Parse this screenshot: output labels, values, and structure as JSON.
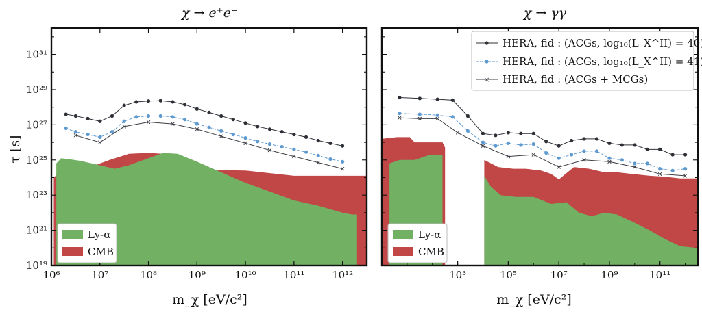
{
  "figure": {
    "ylabel": "τ [s]",
    "ylabel_unit_note": "seconds"
  },
  "colors": {
    "lya": "#72b064",
    "cmb": "#c14646",
    "fid40": "#2d3036",
    "fid41": "#5e9ad0",
    "mcg": "#3b3e44"
  },
  "chart_data": [
    {
      "type": "line",
      "title": "χ → e⁺e⁻",
      "xlabel": "m_χ [eV/c²]",
      "ylabel": "τ [s]",
      "xscale": "log",
      "yscale": "log",
      "xlim_log10": [
        6,
        12.5
      ],
      "ylim_log10": [
        19,
        32.5
      ],
      "xticks": [
        {
          "v": 6,
          "label": "10⁶"
        },
        {
          "v": 7,
          "label": "10⁷"
        },
        {
          "v": 8,
          "label": "10⁸"
        },
        {
          "v": 9,
          "label": "10⁹"
        },
        {
          "v": 10,
          "label": "10¹⁰"
        },
        {
          "v": 11,
          "label": "10¹¹"
        },
        {
          "v": 12,
          "label": "10¹²"
        }
      ],
      "yticks": [
        {
          "v": 19,
          "label": "10¹⁹"
        },
        {
          "v": 21,
          "label": "10²¹"
        },
        {
          "v": 23,
          "label": "10²³"
        },
        {
          "v": 25,
          "label": "10²⁵"
        },
        {
          "v": 27,
          "label": "10²⁷"
        },
        {
          "v": 29,
          "label": "10²⁹"
        },
        {
          "v": 31,
          "label": "10³¹"
        }
      ],
      "series": [
        {
          "name": "HERA, fid : (ACGs, log₁₀(L_X^II) = 40)",
          "key": "fid40",
          "log10_x": [
            6.3,
            6.5,
            6.75,
            7,
            7.25,
            7.5,
            7.75,
            8,
            8.25,
            8.5,
            8.75,
            9,
            9.25,
            9.5,
            9.75,
            10,
            10.25,
            10.5,
            10.75,
            11,
            11.25,
            11.5,
            11.75,
            12
          ],
          "log10_y": [
            27.6,
            27.5,
            27.35,
            27.2,
            27.5,
            28.1,
            28.3,
            28.35,
            28.37,
            28.3,
            28.15,
            27.9,
            27.7,
            27.5,
            27.3,
            27.1,
            26.9,
            26.75,
            26.6,
            26.45,
            26.3,
            26.1,
            25.95,
            25.8
          ]
        },
        {
          "name": "HERA, fid : (ACGs, log₁₀(L_X^II) = 41)",
          "key": "fid41",
          "log10_x": [
            6.3,
            6.5,
            6.75,
            7,
            7.25,
            7.5,
            7.75,
            8,
            8.25,
            8.5,
            8.75,
            9,
            9.25,
            9.5,
            9.75,
            10,
            10.25,
            10.5,
            10.75,
            11,
            11.25,
            11.5,
            11.75,
            12
          ],
          "log10_y": [
            26.8,
            26.6,
            26.45,
            26.3,
            26.6,
            27.2,
            27.45,
            27.5,
            27.5,
            27.45,
            27.3,
            27.05,
            26.85,
            26.65,
            26.45,
            26.25,
            26.05,
            25.9,
            25.75,
            25.6,
            25.45,
            25.25,
            25.05,
            24.9
          ]
        },
        {
          "name": "HERA, fid : (ACGs + MCGs)",
          "key": "mcg",
          "log10_x": [
            6.5,
            7,
            7.5,
            8,
            8.5,
            9,
            9.5,
            10,
            10.5,
            11,
            11.5,
            12
          ],
          "log10_y": [
            26.4,
            26,
            26.9,
            27.15,
            27.05,
            26.75,
            26.35,
            25.95,
            25.55,
            25.2,
            24.85,
            24.5
          ]
        }
      ],
      "regions": [
        {
          "name": "CMB",
          "key": "cmb",
          "log10_x": [
            6.05,
            6.2,
            6.6,
            6.9,
            7.2,
            7.6,
            8,
            8.3,
            8.6,
            9,
            10,
            11,
            12.2,
            12.5
          ],
          "log10_y": [
            24,
            24.4,
            24.6,
            24.7,
            25,
            25.35,
            25.4,
            25.35,
            25.3,
            24.45,
            24.4,
            24.1,
            24.1,
            24.1
          ]
        },
        {
          "name": "Ly-α",
          "key": "lya",
          "log10_x": [
            6.1,
            6.2,
            6.35,
            6.6,
            7,
            7.3,
            7.6,
            8,
            8.3,
            8.6,
            9,
            9.5,
            10,
            10.5,
            11,
            11.5,
            12,
            12.2,
            12.3
          ],
          "log10_y": [
            24.8,
            25.1,
            25.05,
            24.95,
            24.7,
            24.5,
            24.7,
            25.1,
            25.4,
            25.35,
            24.9,
            24.3,
            23.7,
            23.2,
            22.7,
            22.4,
            22,
            21.9,
            21.9
          ]
        }
      ],
      "legend": {
        "position": "lower-left",
        "entries": [
          "Ly-α",
          "CMB"
        ]
      }
    },
    {
      "type": "line",
      "title": "χ → γγ",
      "xlabel": "m_χ [eV/c²]",
      "ylabel": "",
      "xscale": "log",
      "yscale": "log",
      "xlim_log10": [
        0,
        12.5
      ],
      "ylim_log10": [
        19,
        32.5
      ],
      "xticks": [
        {
          "v": 3,
          "label": "10³"
        },
        {
          "v": 5,
          "label": "10⁵"
        },
        {
          "v": 7,
          "label": "10⁷"
        },
        {
          "v": 9,
          "label": "10⁹"
        },
        {
          "v": 11,
          "label": "10¹¹"
        }
      ],
      "series": [
        {
          "name": "HERA, fid : (ACGs, log₁₀(L_X^II) = 40)",
          "key": "fid40",
          "log10_x": [
            0.7,
            1.5,
            2.2,
            2.8,
            3.4,
            4,
            4.5,
            5,
            5.5,
            6,
            6.5,
            7,
            7.5,
            8,
            8.5,
            9,
            9.5,
            10,
            10.5,
            11,
            11.5,
            12
          ],
          "log10_y": [
            28.55,
            28.5,
            28.45,
            28.4,
            27.5,
            26.5,
            26.4,
            26.55,
            26.5,
            26.5,
            26.05,
            25.8,
            26.1,
            26.2,
            26.2,
            25.95,
            25.85,
            25.85,
            25.6,
            25.6,
            25.3,
            25.3
          ]
        },
        {
          "name": "HERA, fid : (ACGs, log₁₀(L_X^II) = 41)",
          "key": "fid41",
          "log10_x": [
            0.7,
            1.5,
            2.2,
            2.8,
            3.4,
            4,
            4.5,
            5,
            5.5,
            6,
            6.5,
            7,
            7.5,
            8,
            8.5,
            9,
            9.5,
            10,
            10.5,
            11,
            11.5,
            12
          ],
          "log10_y": [
            27.65,
            27.6,
            27.55,
            27.45,
            26.65,
            26,
            25.8,
            25.95,
            25.85,
            25.9,
            25.4,
            25.1,
            25.3,
            25.5,
            25.5,
            25.1,
            25,
            24.8,
            24.8,
            24.5,
            24.4,
            24.5
          ]
        },
        {
          "name": "HERA, fid : (ACGs + MCGs)",
          "key": "mcg",
          "log10_x": [
            0.7,
            1.5,
            2.2,
            3,
            4,
            5,
            6,
            7,
            8,
            9,
            10,
            11,
            12
          ],
          "log10_y": [
            27.4,
            27.35,
            27.35,
            26.55,
            25.8,
            25.2,
            25.3,
            24.6,
            25,
            24.9,
            24.6,
            24.2,
            24.1
          ]
        }
      ],
      "regions": [
        {
          "name": "CMB",
          "key": "cmb",
          "log10_x": [
            0,
            0.6,
            1.1,
            1.3,
            1.9,
            2.4,
            2.5,
            2.5,
            4.05,
            4.05,
            4.6,
            5.2,
            5.7,
            6.3,
            6.7,
            7,
            7.6,
            8.2,
            8.8,
            9.3,
            9.9,
            10.6,
            11.2,
            11.8,
            12.5
          ],
          "log10_y": [
            26.2,
            26.3,
            26.3,
            26,
            26,
            26,
            25.7,
            19,
            19,
            25,
            24.6,
            24.5,
            24.5,
            24.4,
            24.2,
            23.9,
            24.6,
            24.5,
            24.3,
            24.3,
            24.2,
            24.1,
            24.05,
            23.95,
            23.95
          ]
        },
        {
          "name": "Ly-α",
          "key": "lya",
          "log10_x": [
            0.3,
            0.3,
            0.7,
            1.3,
            1.9,
            2.4,
            2.4,
            4.05,
            4.05,
            4.3,
            4.7,
            5.3,
            6,
            6.7,
            7.3,
            7.8,
            8.3,
            8.8,
            9.3,
            9.9,
            10.6,
            11.2,
            11.8,
            12.5
          ],
          "log10_y": [
            19,
            24.8,
            25,
            25,
            25.3,
            25.3,
            19,
            19,
            24.1,
            23.5,
            23,
            22.9,
            22.9,
            22.5,
            22.6,
            22,
            21.8,
            22,
            21.9,
            21.5,
            21,
            20.5,
            20.1,
            20
          ]
        }
      ],
      "legend": {
        "position": "lower-left",
        "entries": [
          "Ly-α",
          "CMB"
        ]
      },
      "series_legend": {
        "position": "upper-right",
        "entries": [
          "HERA, fid : (ACGs, log₁₀(L_X^II) = 40)",
          "HERA, fid : (ACGs, log₁₀(L_X^II) = 41)",
          "HERA, fid : (ACGs + MCGs)"
        ]
      }
    }
  ]
}
